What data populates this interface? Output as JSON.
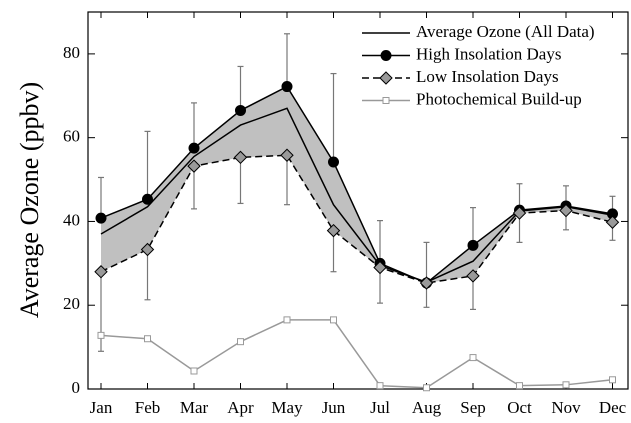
{
  "chart_data": {
    "type": "line",
    "ylabel": "Average Ozone (ppbv)",
    "categories": [
      "Jan",
      "Feb",
      "Mar",
      "Apr",
      "May",
      "Jun",
      "Jul",
      "Aug",
      "Sep",
      "Oct",
      "Nov",
      "Dec"
    ],
    "ylim": [
      0,
      90
    ],
    "yticks": [
      0,
      20,
      40,
      60,
      80
    ],
    "band_color": "#c0c0c0",
    "legend": "upper right",
    "series": [
      {
        "name": "Average Ozone (All Data)",
        "color": "#000000",
        "marker": "none",
        "dash": false,
        "values": [
          37,
          43.5,
          55.5,
          63,
          67,
          44,
          29.5,
          25.5,
          30.5,
          42.5,
          43.5,
          41.5
        ]
      },
      {
        "name": "High Insolation Days",
        "color": "#000000",
        "marker": "circle",
        "marker_fill": "#000000",
        "dash": false,
        "values": [
          40.8,
          45.3,
          57.5,
          66.5,
          72.2,
          54.2,
          30,
          25.3,
          34.3,
          42.7,
          43.7,
          41.8
        ],
        "errors": [
          9.7,
          16.2,
          10.8,
          10.5,
          12.6,
          21.1,
          10.2,
          9.7,
          9,
          6.3,
          4.8,
          4.2
        ],
        "error_direction": "up"
      },
      {
        "name": "Low Insolation Days",
        "color": "#000000",
        "marker": "diamond",
        "marker_fill": "#999999",
        "dash": true,
        "values": [
          28,
          33.3,
          53.2,
          55.3,
          55.8,
          37.8,
          29,
          25.3,
          27,
          42,
          42.6,
          39.8
        ],
        "errors": [
          19,
          12,
          10.2,
          11,
          11.8,
          9.8,
          8.5,
          5.8,
          8,
          7,
          4.6,
          4.3
        ],
        "error_direction": "down"
      },
      {
        "name": "Photochemical Build-up",
        "color": "#999999",
        "marker": "square",
        "marker_fill": "#ffffff",
        "dash": false,
        "values": [
          12.8,
          12,
          4.3,
          11.3,
          16.5,
          16.5,
          0.8,
          0.3,
          7.5,
          0.8,
          1,
          2.2
        ]
      }
    ]
  }
}
